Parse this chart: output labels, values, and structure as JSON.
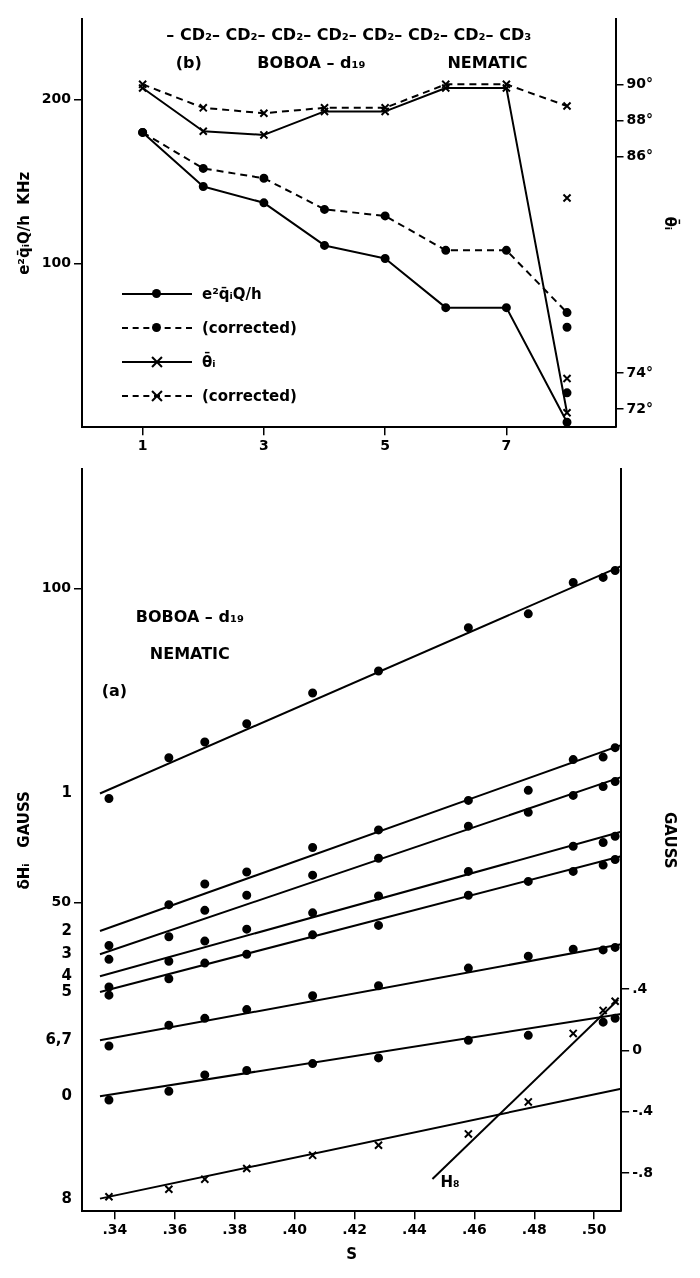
{
  "chart_data": [
    {
      "type": "line",
      "xlim": [
        0,
        8.8
      ],
      "xticks": [
        1,
        3,
        5,
        7
      ],
      "ylim": [
        0,
        249
      ],
      "yticks": [
        100,
        200
      ],
      "y2lim": [
        71,
        93.6
      ],
      "y2ticks": [
        {
          "value": 90,
          "label": "90°"
        },
        {
          "value": 88,
          "label": "88°"
        },
        {
          "value": 86,
          "label": "86°"
        },
        {
          "value": 74,
          "label": "74°"
        },
        {
          "value": 72,
          "label": "72°"
        }
      ],
      "ylabel": "e²q̄ᵢQ/h  KHz",
      "y2label": "θ̄ᵢ",
      "legend": "bottom left",
      "annotations": [
        "– CD₂– CD₂– CD₂– CD₂– CD₂– CD₂– CD₂– CD₃",
        "(b)",
        "BOBOA – d₁₉",
        "NEMATIC"
      ],
      "series": [
        {
          "name": "e²q̄ᵢQ/h",
          "marker": "circle",
          "line_style": "solid",
          "color": "#000000",
          "x": [
            1,
            2,
            3,
            4,
            5,
            6,
            7,
            8
          ],
          "values": [
            180,
            147,
            137,
            111,
            103,
            73,
            73,
            3
          ]
        },
        {
          "name": "(corrected)",
          "marker": "circle",
          "line_style": "dashed",
          "color": "#000000",
          "x": [
            1,
            2,
            3,
            4,
            5,
            6,
            7,
            8
          ],
          "values": [
            180,
            158,
            152,
            133,
            129,
            108,
            108,
            70
          ]
        },
        {
          "name": "θ̄ᵢ",
          "marker": "cross",
          "line_style": "solid",
          "axis": "y2",
          "color": "#000000",
          "x": [
            1,
            2,
            3,
            4,
            5,
            6,
            7,
            8
          ],
          "values": [
            89.8,
            87.4,
            87.2,
            88.5,
            88.5,
            89.8,
            89.8,
            71.8
          ]
        },
        {
          "name": "(corrected)",
          "marker": "cross",
          "line_style": "dashed",
          "axis": "y2",
          "color": "#000000",
          "x": [
            1,
            2,
            3,
            4,
            5,
            6,
            7,
            8
          ],
          "values": [
            90.0,
            88.7,
            88.4,
            88.7,
            88.7,
            90.0,
            90.0,
            88.8
          ]
        },
        {
          "type": "scatter",
          "marker": "circle",
          "color": "#000000",
          "x": [
            8,
            8
          ],
          "values": [
            61,
            21
          ]
        },
        {
          "type": "scatter",
          "marker": "cross",
          "axis": "y2",
          "color": "#000000",
          "x": [
            8,
            8
          ],
          "values": [
            83.7,
            73.7
          ]
        }
      ]
    },
    {
      "type": "scatter",
      "xlabel": "S",
      "ylabel": "δHᵢ   GAUSS",
      "y2label": "GAUSS",
      "xlim": [
        0.329,
        0.509
      ],
      "xticks": [
        {
          "value": 0.34,
          "label": ".34"
        },
        {
          "value": 0.36,
          "label": ".36"
        },
        {
          "value": 0.38,
          "label": ".38"
        },
        {
          "value": 0.4,
          "label": ".40"
        },
        {
          "value": 0.42,
          "label": ".42"
        },
        {
          "value": 0.44,
          "label": ".44"
        },
        {
          "value": 0.46,
          "label": ".46"
        },
        {
          "value": 0.48,
          "label": ".48"
        },
        {
          "value": 0.5,
          "label": ".50"
        }
      ],
      "ylim": [
        0.9,
        119
      ],
      "yticks": [
        50,
        100
      ],
      "y2lim": [
        -1.05,
        3.79
      ],
      "y2ticks": [
        {
          "value": 0.4,
          "label": ".4"
        },
        {
          "value": 0,
          "label": "0"
        },
        {
          "value": -0.4,
          "label": "-.4"
        },
        {
          "value": -0.8,
          "label": "-.8"
        }
      ],
      "annotations": [
        "BOBOA – d₁₉",
        "NEMATIC",
        "(a)"
      ],
      "series": [
        {
          "marker": "circle",
          "color": "#000000",
          "x": [
            0.338,
            0.358,
            0.37,
            0.384,
            0.406,
            0.428,
            0.458,
            0.478,
            0.493,
            0.503,
            0.507
          ],
          "values": [
            66.6,
            73.1,
            75.6,
            78.5,
            83.4,
            86.9,
            93.8,
            96.0,
            101.0,
            101.8,
            102.9
          ]
        },
        {
          "marker": "circle",
          "color": "#000000",
          "x": [
            0.338,
            0.358,
            0.37,
            0.384,
            0.406,
            0.428,
            0.458,
            0.478,
            0.493,
            0.503,
            0.507
          ],
          "values": [
            43.2,
            49.7,
            53.0,
            54.9,
            58.8,
            61.6,
            66.3,
            67.9,
            72.8,
            73.2,
            74.7
          ]
        },
        {
          "marker": "circle",
          "color": "#000000",
          "x": [
            0.338,
            0.358,
            0.37,
            0.384,
            0.406,
            0.428,
            0.458,
            0.478,
            0.493,
            0.503,
            0.507
          ],
          "values": [
            41.0,
            44.6,
            48.8,
            51.2,
            54.4,
            57.1,
            62.2,
            64.4,
            67.1,
            68.5,
            69.3
          ]
        },
        {
          "marker": "circle",
          "color": "#000000",
          "x": [
            0.338,
            0.358,
            0.37,
            0.384,
            0.406,
            0.428,
            0.458,
            0.478,
            0.493,
            0.503,
            0.507
          ],
          "values": [
            36.6,
            40.7,
            43.9,
            45.8,
            48.4,
            51.1,
            55.0,
            null,
            59.0,
            59.6,
            60.6
          ]
        },
        {
          "marker": "circle",
          "color": "#000000",
          "x": [
            0.338,
            0.358,
            0.37,
            0.384,
            0.406,
            0.428,
            0.458,
            0.478,
            0.493,
            0.503,
            0.507
          ],
          "values": [
            35.3,
            37.9,
            40.4,
            41.8,
            44.9,
            46.4,
            51.2,
            53.4,
            55.0,
            56.0,
            56.9
          ]
        },
        {
          "marker": "circle",
          "color": "#000000",
          "x": [
            0.338,
            0.358,
            0.37,
            0.384,
            0.406,
            0.428,
            0.458,
            0.478,
            0.493,
            0.503,
            0.507
          ],
          "values": [
            27.2,
            30.5,
            31.6,
            33.0,
            35.2,
            36.8,
            39.6,
            41.5,
            42.6,
            42.5,
            42.9
          ]
        },
        {
          "marker": "circle",
          "color": "#000000",
          "x": [
            0.338,
            0.358,
            0.37,
            0.384,
            0.406,
            0.428,
            0.458,
            0.478,
            0.503,
            0.507
          ],
          "values": [
            18.6,
            20.0,
            22.6,
            23.3,
            24.4,
            25.3,
            28.1,
            28.9,
            31.0,
            31.6
          ]
        },
        {
          "marker": "cross",
          "color": "#000000",
          "x": [
            0.338,
            0.358,
            0.37,
            0.384,
            0.406,
            0.428,
            0.458,
            0.478
          ],
          "values": [
            3.2,
            4.4,
            6.0,
            7.7,
            9.8,
            11.4,
            13.2,
            18.3
          ]
        },
        {
          "marker": "cross",
          "axis": "y2",
          "color": "#000000",
          "x": [
            0.493,
            0.503,
            0.507
          ],
          "values": [
            0.11,
            0.26,
            0.32
          ]
        },
        {
          "name": "1",
          "type": "line",
          "marker": "none",
          "color": "#000000",
          "x": [
            0.335,
            0.509
          ],
          "values": [
            67.4,
            103.6
          ]
        },
        {
          "name": "2",
          "type": "line",
          "marker": "none",
          "color": "#000000",
          "x": [
            0.335,
            0.509
          ],
          "values": [
            45.5,
            75.1
          ]
        },
        {
          "name": "3",
          "type": "line",
          "marker": "none",
          "color": "#000000",
          "x": [
            0.335,
            0.509
          ],
          "values": [
            41.8,
            70.0
          ]
        },
        {
          "name": "4",
          "type": "line",
          "marker": "none",
          "color": "#000000",
          "x": [
            0.335,
            0.509
          ],
          "values": [
            38.3,
            61.3
          ]
        },
        {
          "name": "5",
          "type": "line",
          "marker": "none",
          "color": "#000000",
          "x": [
            0.335,
            0.509
          ],
          "values": [
            35.8,
            57.4
          ]
        },
        {
          "name": "6,7",
          "type": "line",
          "marker": "none",
          "color": "#000000",
          "x": [
            0.335,
            0.509
          ],
          "values": [
            28.1,
            43.4
          ]
        },
        {
          "name": "0",
          "type": "line",
          "marker": "none",
          "color": "#000000",
          "x": [
            0.335,
            0.509
          ],
          "values": [
            19.2,
            32.3
          ]
        },
        {
          "name": "8",
          "type": "line",
          "marker": "none",
          "color": "#000000",
          "x": [
            0.335,
            0.509
          ],
          "values": [
            2.9,
            20.4
          ]
        },
        {
          "name": "H₈",
          "type": "line",
          "marker": "none",
          "axis": "y2",
          "color": "#000000",
          "x": [
            0.446,
            0.508
          ],
          "values": [
            -0.84,
            0.33
          ]
        }
      ]
    }
  ]
}
